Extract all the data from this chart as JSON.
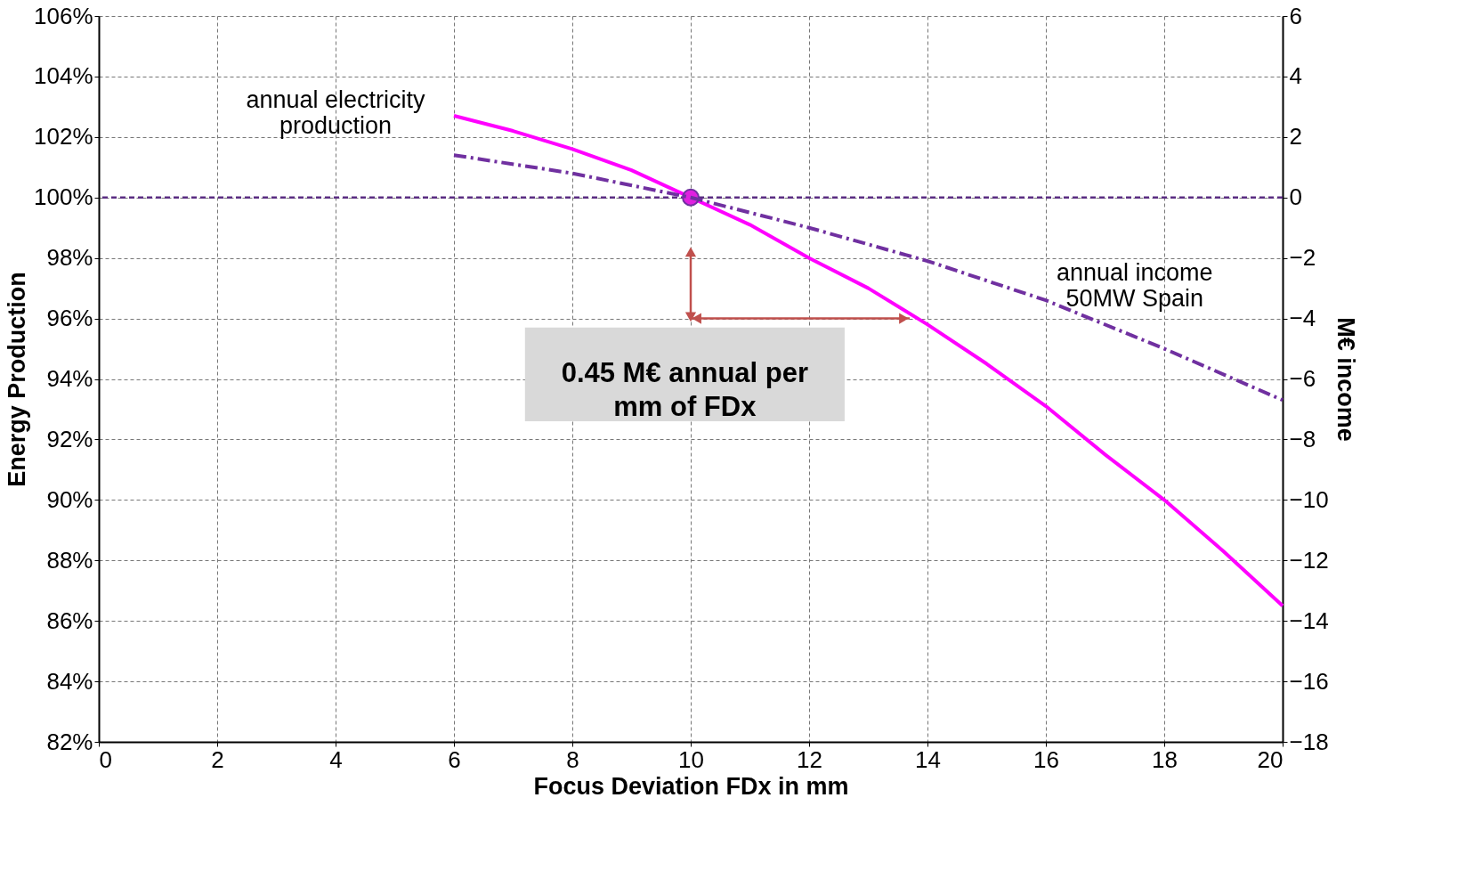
{
  "chart_data": {
    "type": "line",
    "xlabel": "Focus Deviation FDx in mm",
    "ylabel": "Energy  Production",
    "y2label": "M€  income",
    "xlim": [
      0,
      20
    ],
    "xticks": [
      0,
      2,
      4,
      6,
      8,
      10,
      12,
      14,
      16,
      18,
      20
    ],
    "ylim": [
      82,
      106
    ],
    "yticks": [
      {
        "value": 82,
        "label": "82%"
      },
      {
        "value": 84,
        "label": "84%"
      },
      {
        "value": 86,
        "label": "86%"
      },
      {
        "value": 88,
        "label": "88%"
      },
      {
        "value": 90,
        "label": "90%"
      },
      {
        "value": 92,
        "label": "92%"
      },
      {
        "value": 94,
        "label": "94%"
      },
      {
        "value": 96,
        "label": "96%"
      },
      {
        "value": 98,
        "label": "98%"
      },
      {
        "value": 100,
        "label": "100%"
      },
      {
        "value": 102,
        "label": "102%"
      },
      {
        "value": 104,
        "label": "104%"
      },
      {
        "value": 106,
        "label": "106%"
      }
    ],
    "y2lim": [
      -18,
      6
    ],
    "y2ticks": [
      -18,
      -16,
      -14,
      -12,
      -10,
      -8,
      -6,
      -4,
      -2,
      0,
      2,
      4,
      6
    ],
    "grid": true,
    "series": [
      {
        "name": "annual electricity production",
        "color": "#ff00ff",
        "line_style": "solid",
        "x": [
          6,
          7,
          8,
          9,
          10,
          11,
          12,
          13,
          14,
          15,
          16,
          17,
          18,
          19,
          20
        ],
        "values": [
          102.7,
          102.2,
          101.6,
          100.9,
          100,
          99.1,
          98.0,
          97.0,
          95.8,
          94.5,
          93.1,
          91.5,
          90.0,
          88.3,
          86.5
        ]
      },
      {
        "name": "annual income 50MW Spain",
        "color": "#7030a0",
        "line_style": "dashed",
        "axis": "y2",
        "x": [
          6,
          8,
          10,
          12,
          14,
          16,
          18,
          20
        ],
        "values": [
          1.4,
          0.8,
          0,
          -1.0,
          -2.1,
          -3.4,
          -5.0,
          -6.7
        ]
      },
      {
        "type": "scatter",
        "color": "#e020e0",
        "marker": "circle",
        "x": [
          10
        ],
        "values": [
          100
        ]
      }
    ],
    "ref_lines": [
      {
        "axis": "y",
        "value": 100,
        "color": "#5a2d82",
        "line_style": "dashed"
      }
    ],
    "annotations": [
      "0.45 M€ annual per mm of FDx"
    ]
  }
}
